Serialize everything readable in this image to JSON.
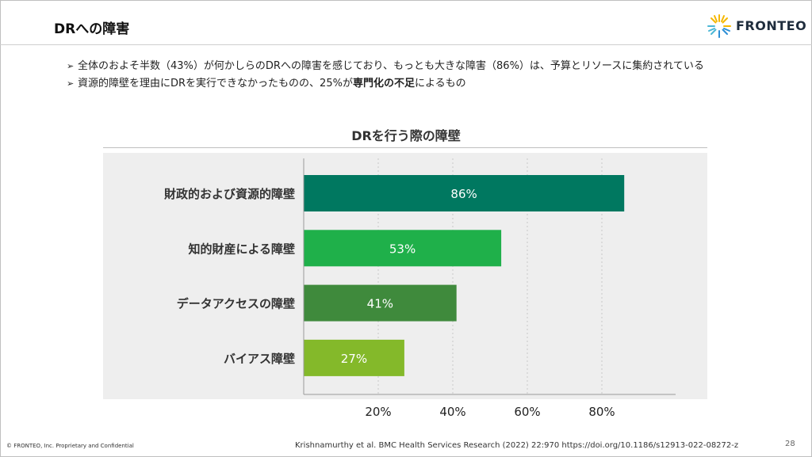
{
  "slide": {
    "title": "DRへの障害",
    "logo_text": "FRONTEO",
    "bullets": [
      {
        "text": "全体のおよそ半数（43%）が何かしらのDRへの障害を感じており、もっとも大きな障害（86%）は、予算とリソースに集約されている"
      },
      {
        "pre": "資源的障壁を理由にDRを実行できなかったものの、25%が",
        "bold": "専門化の不足",
        "post": "によるもの"
      }
    ],
    "footer_left": "© FRONTEO, Inc.  Proprietary and Confidential",
    "source": "Krishnamurthy et al.   BMC Health Services Research (2022) 22:970   https://doi.org/10.1186/s12913-022-08272-z",
    "page_number": "28"
  },
  "colors": {
    "bar1": "#007860",
    "bar2": "#1fb04a",
    "bar3": "#3f8a3c",
    "bar4": "#84b92a",
    "plot_bg": "#eeeeee"
  },
  "chart_data": {
    "type": "bar",
    "orientation": "horizontal",
    "title": "DRを行う際の障壁",
    "categories": [
      "財政的および資源的障壁",
      "知的財産による障壁",
      "データアクセスの障壁",
      "バイアス障壁"
    ],
    "values": [
      86,
      53,
      41,
      27
    ],
    "value_labels": [
      "86%",
      "53%",
      "41%",
      "27%"
    ],
    "xlim": [
      0,
      100
    ],
    "xticks": [
      20,
      40,
      60,
      80
    ],
    "xtick_labels": [
      "20%",
      "40%",
      "60%",
      "80%"
    ],
    "grid": "vertical dashed",
    "legend": "none"
  }
}
